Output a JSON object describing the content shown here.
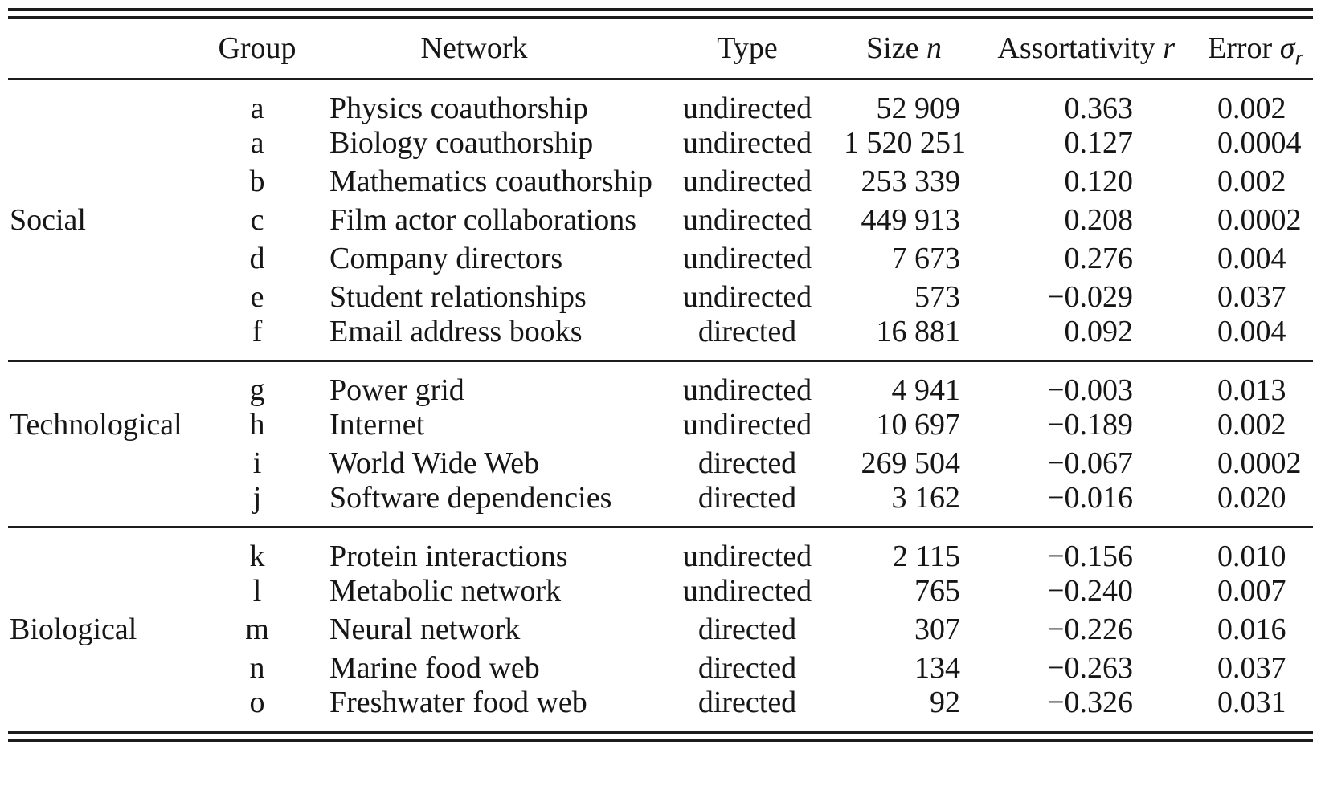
{
  "table": {
    "headers": {
      "group": "Group",
      "network": "Network",
      "type": "Type",
      "size_label": "Size",
      "size_symbol": "n",
      "assortativity_label": "Assortativity",
      "assortativity_symbol": "r",
      "error_label": "Error",
      "error_symbol": "σ",
      "error_subscript": "r"
    },
    "sections": [
      {
        "name": "Social",
        "label_row_index": 3,
        "rows": [
          {
            "group": "a",
            "network": "Physics coauthorship",
            "type": "undirected",
            "size": "52 909",
            "assortativity": "0.363",
            "error": "0.002"
          },
          {
            "group": "a",
            "network": "Biology coauthorship",
            "type": "undirected",
            "size": "1 520 251",
            "assortativity": "0.127",
            "error": "0.0004"
          },
          {
            "group": "b",
            "network": "Mathematics coauthorship",
            "type": "undirected",
            "size": "253 339",
            "assortativity": "0.120",
            "error": "0.002"
          },
          {
            "group": "c",
            "network": "Film actor collaborations",
            "type": "undirected",
            "size": "449 913",
            "assortativity": "0.208",
            "error": "0.0002"
          },
          {
            "group": "d",
            "network": "Company directors",
            "type": "undirected",
            "size": "7 673",
            "assortativity": "0.276",
            "error": "0.004"
          },
          {
            "group": "e",
            "network": "Student relationships",
            "type": "undirected",
            "size": "573",
            "assortativity": "−0.029",
            "error": "0.037"
          },
          {
            "group": "f",
            "network": "Email address books",
            "type": "directed",
            "size": "16 881",
            "assortativity": "0.092",
            "error": "0.004"
          }
        ]
      },
      {
        "name": "Technological",
        "label_row_index": 1,
        "rows": [
          {
            "group": "g",
            "network": "Power grid",
            "type": "undirected",
            "size": "4 941",
            "assortativity": "−0.003",
            "error": "0.013"
          },
          {
            "group": "h",
            "network": "Internet",
            "type": "undirected",
            "size": "10 697",
            "assortativity": "−0.189",
            "error": "0.002"
          },
          {
            "group": "i",
            "network": "World Wide Web",
            "type": "directed",
            "size": "269 504",
            "assortativity": "−0.067",
            "error": "0.0002"
          },
          {
            "group": "j",
            "network": "Software dependencies",
            "type": "directed",
            "size": "3 162",
            "assortativity": "−0.016",
            "error": "0.020"
          }
        ]
      },
      {
        "name": "Biological",
        "label_row_index": 2,
        "rows": [
          {
            "group": "k",
            "network": "Protein interactions",
            "type": "undirected",
            "size": "2 115",
            "assortativity": "−0.156",
            "error": "0.010"
          },
          {
            "group": "l",
            "network": "Metabolic network",
            "type": "undirected",
            "size": "765",
            "assortativity": "−0.240",
            "error": "0.007"
          },
          {
            "group": "m",
            "network": "Neural network",
            "type": "directed",
            "size": "307",
            "assortativity": "−0.226",
            "error": "0.016"
          },
          {
            "group": "n",
            "network": "Marine food web",
            "type": "directed",
            "size": "134",
            "assortativity": "−0.263",
            "error": "0.037"
          },
          {
            "group": "o",
            "network": "Freshwater food web",
            "type": "directed",
            "size": "92",
            "assortativity": "−0.326",
            "error": "0.031"
          }
        ]
      }
    ]
  }
}
